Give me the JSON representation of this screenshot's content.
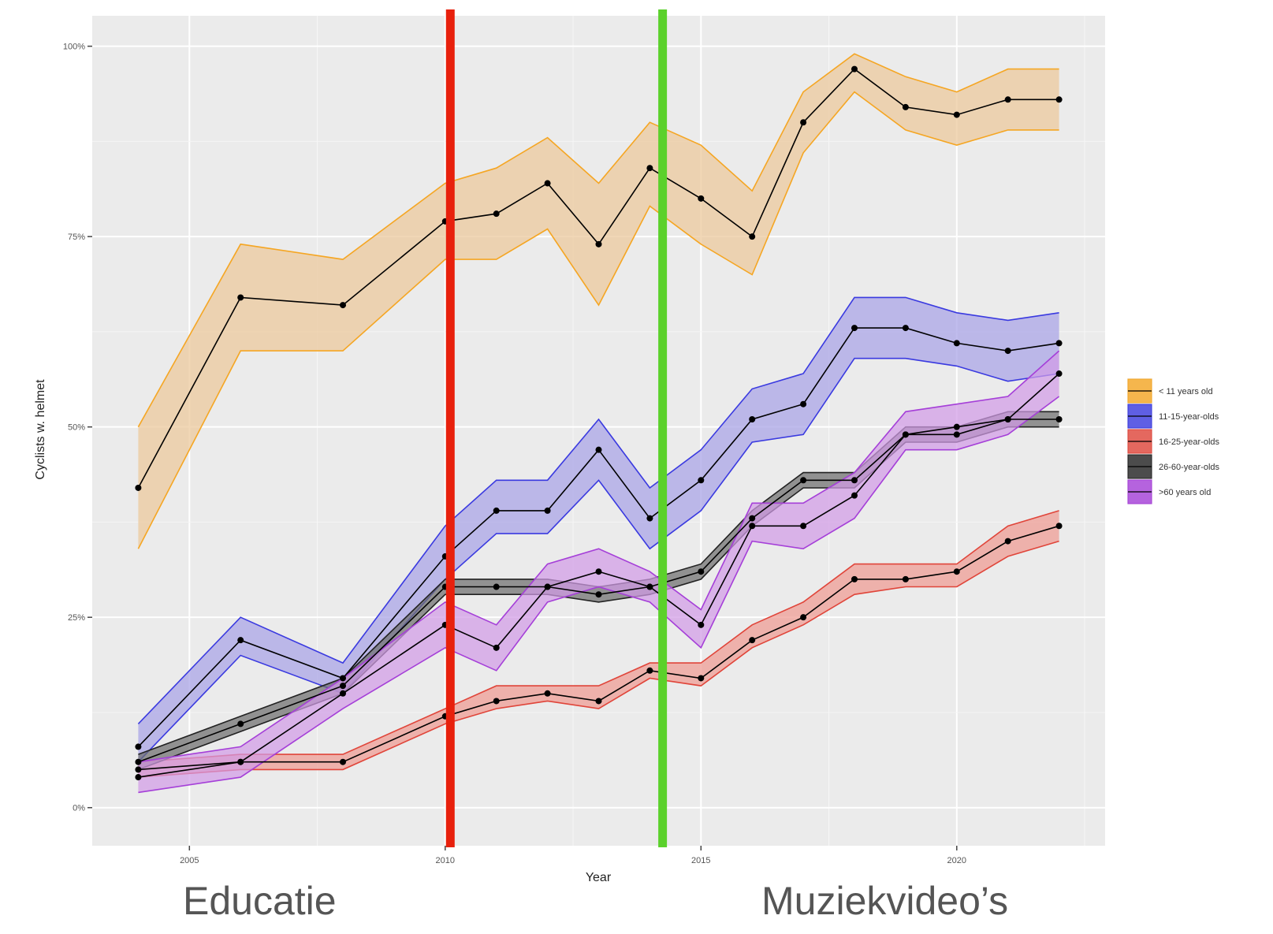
{
  "chart_data": {
    "type": "line",
    "xlabel": "Year",
    "ylabel": "Cyclists w. helmet",
    "xlim": [
      2003.1,
      2022.9
    ],
    "ylim": [
      -5,
      104
    ],
    "x_ticks": [
      2005,
      2010,
      2015,
      2020
    ],
    "x_tick_labels": [
      "2005",
      "2010",
      "2015",
      "2020"
    ],
    "y_ticks": [
      0,
      25,
      50,
      75,
      100
    ],
    "y_tick_labels": [
      "0%",
      "25%",
      "50%",
      "75%",
      "100%"
    ],
    "grid": true,
    "legend_position": "right",
    "series": [
      {
        "name": "< 11 years old",
        "color": "#F5A623",
        "fill": "#EBC79A",
        "x": [
          2004,
          2006,
          2008,
          2010,
          2011,
          2012,
          2013,
          2014,
          2015,
          2016,
          2017,
          2018,
          2019,
          2020,
          2021,
          2022
        ],
        "y": [
          42,
          67,
          66,
          77,
          78,
          82,
          74,
          84,
          80,
          75,
          90,
          97,
          92,
          91,
          93,
          93
        ],
        "lower": [
          34,
          60,
          60,
          72,
          72,
          76,
          66,
          79,
          74,
          70,
          86,
          94,
          89,
          87,
          89,
          89
        ],
        "upper": [
          50,
          74,
          72,
          82,
          84,
          88,
          82,
          90,
          87,
          81,
          94,
          99,
          96,
          94,
          97,
          97
        ]
      },
      {
        "name": "11-15-year-olds",
        "color": "#3A3AE0",
        "fill": "#A7A2E6",
        "x": [
          2004,
          2006,
          2008,
          2010,
          2011,
          2012,
          2013,
          2014,
          2015,
          2016,
          2017,
          2018,
          2019,
          2020,
          2021,
          2022
        ],
        "y": [
          8,
          22,
          17,
          33,
          39,
          39,
          47,
          38,
          43,
          51,
          53,
          63,
          63,
          61,
          60,
          61
        ],
        "lower": [
          6,
          20,
          15,
          30,
          36,
          36,
          43,
          34,
          39,
          48,
          49,
          59,
          59,
          58,
          56,
          57
        ],
        "upper": [
          11,
          25,
          19,
          37,
          43,
          43,
          51,
          42,
          47,
          55,
          57,
          67,
          67,
          65,
          64,
          65
        ]
      },
      {
        "name": "16-25-year-olds",
        "color": "#E0453A",
        "fill": "#EE9A92",
        "x": [
          2004,
          2006,
          2008,
          2010,
          2011,
          2012,
          2013,
          2014,
          2015,
          2016,
          2017,
          2018,
          2019,
          2020,
          2021,
          2022
        ],
        "y": [
          5,
          6,
          6,
          12,
          14,
          15,
          14,
          18,
          17,
          22,
          25,
          30,
          30,
          31,
          35,
          37
        ],
        "lower": [
          4,
          5,
          5,
          11,
          13,
          14,
          13,
          17,
          16,
          21,
          24,
          28,
          29,
          29,
          33,
          35
        ],
        "upper": [
          6,
          7,
          7,
          13,
          16,
          16,
          16,
          19,
          19,
          24,
          27,
          32,
          32,
          32,
          37,
          39
        ]
      },
      {
        "name": "26-60-year-olds",
        "color": "#222222",
        "fill": "#6E6E6E",
        "x": [
          2004,
          2006,
          2008,
          2010,
          2011,
          2012,
          2013,
          2014,
          2015,
          2016,
          2017,
          2018,
          2019,
          2020,
          2021,
          2022
        ],
        "y": [
          6,
          11,
          16,
          29,
          29,
          29,
          28,
          29,
          31,
          38,
          43,
          43,
          49,
          49,
          51,
          51
        ],
        "lower": [
          5,
          10,
          15,
          28,
          28,
          28,
          27,
          28,
          30,
          37,
          42,
          42,
          48,
          48,
          50,
          50
        ],
        "upper": [
          7,
          12,
          17,
          30,
          30,
          30,
          29,
          30,
          32,
          39,
          44,
          44,
          50,
          50,
          52,
          52
        ]
      },
      {
        "name": ">60 years old",
        "color": "#A53FD8",
        "fill": "#D19BE6",
        "x": [
          2004,
          2006,
          2008,
          2010,
          2011,
          2012,
          2013,
          2014,
          2015,
          2016,
          2017,
          2018,
          2019,
          2020,
          2021,
          2022
        ],
        "y": [
          4,
          6,
          15,
          24,
          21,
          29,
          31,
          29,
          24,
          37,
          37,
          41,
          49,
          50,
          51,
          57
        ],
        "lower": [
          2,
          4,
          13,
          21,
          18,
          27,
          29,
          27,
          21,
          35,
          34,
          38,
          47,
          47,
          49,
          54
        ],
        "upper": [
          6,
          8,
          17,
          27,
          24,
          32,
          34,
          31,
          26,
          40,
          40,
          44,
          52,
          53,
          54,
          60
        ]
      }
    ],
    "vertical_lines": [
      {
        "x": 2010.1,
        "color": "#E8200C"
      },
      {
        "x": 2014.25,
        "color": "#5BD12B"
      }
    ]
  },
  "annotations": {
    "left": "Educatie",
    "right": "Muziekvideo’s"
  }
}
